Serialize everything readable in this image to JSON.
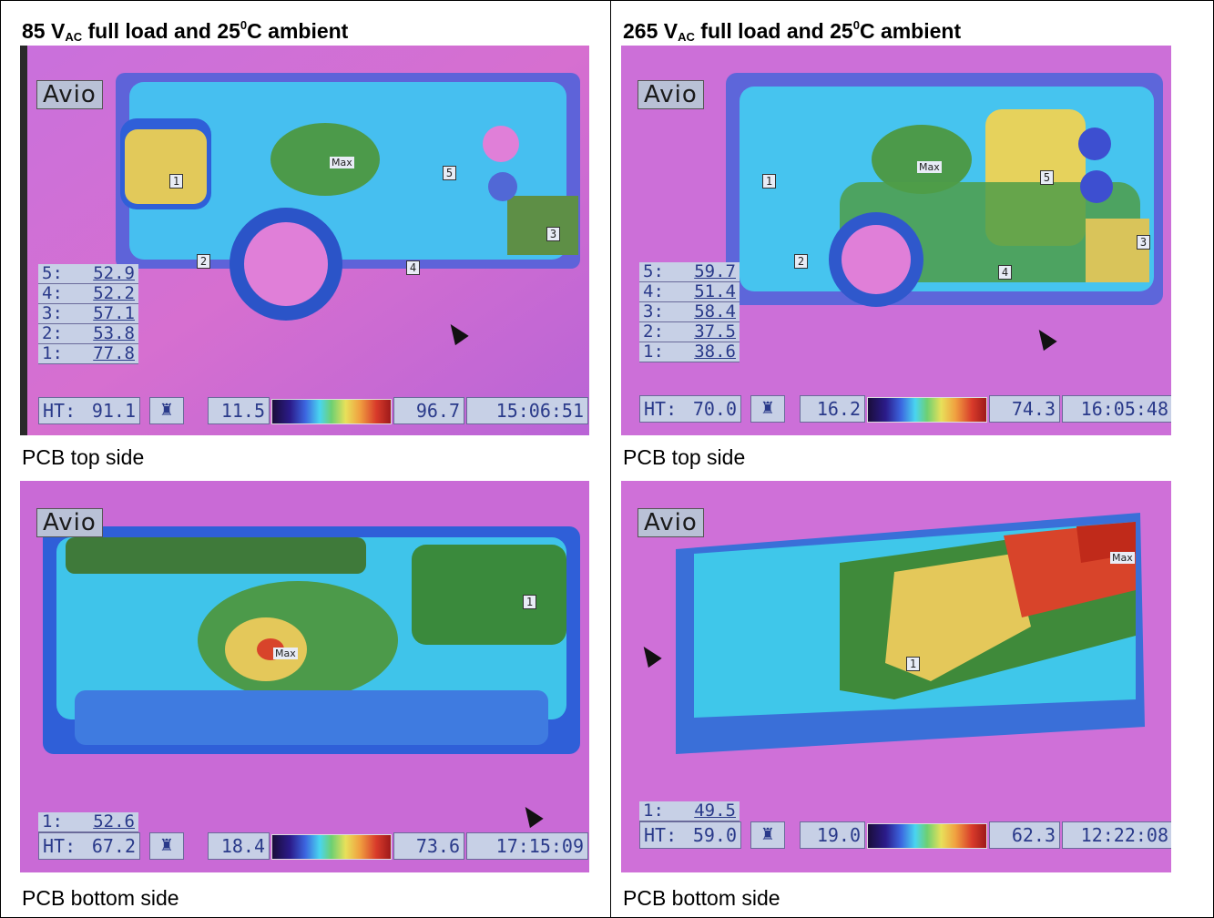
{
  "table": {
    "left_header": {
      "voltage": "85 V",
      "sub": "AC",
      "rest": " full load and 25",
      "sup": "0",
      "end": "C ambient"
    },
    "right_header": {
      "voltage": "265 V",
      "sub": "AC",
      "rest": " full load and 25",
      "sup": "0",
      "end": "C ambient"
    },
    "captions": {
      "top_left": "PCB top side",
      "top_right": "PCB top side",
      "bottom_left": "PCB bottom side",
      "bottom_right": "PCB bottom side"
    }
  },
  "images": {
    "top_left": {
      "logo": "Avio",
      "points": [
        {
          "label": "5:",
          "value": "52.9"
        },
        {
          "label": "4:",
          "value": "52.2"
        },
        {
          "label": "3:",
          "value": "57.1"
        },
        {
          "label": "2:",
          "value": "53.8"
        },
        {
          "label": "1:",
          "value": "77.8"
        }
      ],
      "ht": {
        "label": "HT:",
        "value": "91.1"
      },
      "range_min": "11.5",
      "range_max": "96.7",
      "time": "15:06:51",
      "markers": [
        "1",
        "2",
        "3",
        "4",
        "5"
      ],
      "max_label": "Max"
    },
    "top_right": {
      "logo": "Avio",
      "points": [
        {
          "label": "5:",
          "value": "59.7"
        },
        {
          "label": "4:",
          "value": "51.4"
        },
        {
          "label": "3:",
          "value": "58.4"
        },
        {
          "label": "2:",
          "value": "37.5"
        },
        {
          "label": "1:",
          "value": "38.6"
        }
      ],
      "ht": {
        "label": "HT:",
        "value": "70.0"
      },
      "range_min": "16.2",
      "range_max": "74.3",
      "time": "16:05:48",
      "markers": [
        "1",
        "2",
        "3",
        "4",
        "5"
      ],
      "max_label": "Max"
    },
    "bottom_left": {
      "logo": "Avio",
      "points": [
        {
          "label": "1:",
          "value": "52.6"
        }
      ],
      "ht": {
        "label": "HT:",
        "value": "67.2"
      },
      "range_min": "18.4",
      "range_max": "73.6",
      "time": "17:15:09",
      "markers": [
        "1"
      ],
      "max_label": "Max"
    },
    "bottom_right": {
      "logo": "Avio",
      "points": [
        {
          "label": "1:",
          "value": "49.5"
        }
      ],
      "ht": {
        "label": "HT:",
        "value": "59.0"
      },
      "range_min": "19.0",
      "range_max": "62.3",
      "time": "12:22:08",
      "markers": [
        "1"
      ],
      "max_label": "Max"
    }
  },
  "colors": {
    "background_magenta": "#c86ad8",
    "cool_blue": "#2f5fd8",
    "cyan": "#3fd6ec",
    "green": "#3f8a3a",
    "yellow": "#e6d25c",
    "red": "#d8442a"
  }
}
